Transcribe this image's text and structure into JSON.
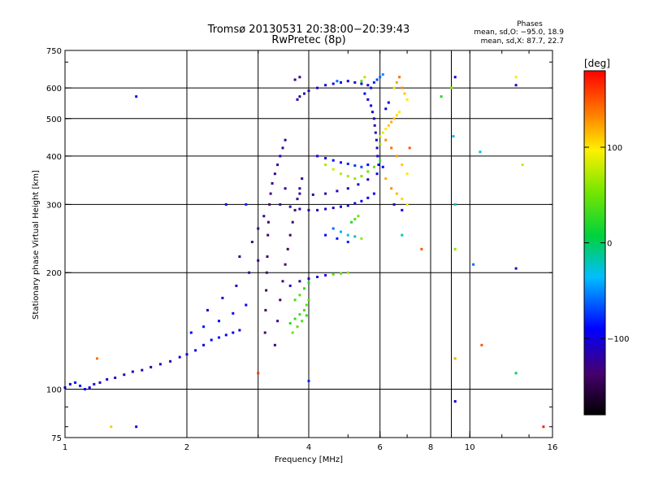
{
  "chart_data": {
    "type": "scatter",
    "title": "Tromsø 20130531 20:38:00−20:39:43",
    "subtitle": "RwPretec (8p)",
    "stats": {
      "heading": "Phases",
      "line_o": "mean, sd,O:  −95.0, 18.9",
      "line_x": "mean, sd,X:  87.7, 22.7"
    },
    "xlabel": "Frequency [MHz]",
    "ylabel": "Stationary phase Virtual Height [km]",
    "x_scale": "log",
    "y_scale": "log",
    "xlim": [
      1,
      16
    ],
    "ylim": [
      75,
      750
    ],
    "x_ticks": [
      {
        "v": 1,
        "label": "1"
      },
      {
        "v": 2,
        "label": "2"
      },
      {
        "v": 4,
        "label": "4"
      },
      {
        "v": 6,
        "label": "6"
      },
      {
        "v": 8,
        "label": "8"
      },
      {
        "v": 10,
        "label": "10"
      },
      {
        "v": 16,
        "label": "16"
      }
    ],
    "x_grid": [
      2,
      3,
      4,
      6,
      8,
      9,
      10
    ],
    "y_ticks": [
      {
        "v": 75,
        "label": "75"
      },
      {
        "v": 100,
        "label": "100"
      },
      {
        "v": 200,
        "label": "200"
      },
      {
        "v": 300,
        "label": "300"
      },
      {
        "v": 400,
        "label": "400"
      },
      {
        "v": 500,
        "label": "500"
      },
      {
        "v": 600,
        "label": "600"
      },
      {
        "v": 750,
        "label": "750"
      }
    ],
    "y_grid": [
      100,
      200,
      300,
      400,
      500,
      600
    ],
    "grid": true,
    "colorbar": {
      "label": "[deg]",
      "range": [
        -180,
        180
      ],
      "ticks": [
        {
          "v": 100,
          "label": "100"
        },
        {
          "v": 0,
          "label": "0"
        },
        {
          "v": -100,
          "label": "−100"
        }
      ]
    },
    "points": [
      [
        1.0,
        101,
        -100
      ],
      [
        1.03,
        103,
        -95
      ],
      [
        1.06,
        104,
        -90
      ],
      [
        1.09,
        102,
        -85
      ],
      [
        1.12,
        100,
        -92
      ],
      [
        1.15,
        101,
        -100
      ],
      [
        1.18,
        103,
        -105
      ],
      [
        1.22,
        104,
        -110
      ],
      [
        1.27,
        106,
        -108
      ],
      [
        1.33,
        107,
        -112
      ],
      [
        1.4,
        109,
        -115
      ],
      [
        1.47,
        111,
        -110
      ],
      [
        1.55,
        112,
        -115
      ],
      [
        1.63,
        114,
        -118
      ],
      [
        1.72,
        116,
        -112
      ],
      [
        1.82,
        118,
        -110
      ],
      [
        1.92,
        121,
        -108
      ],
      [
        2.0,
        123,
        -100
      ],
      [
        2.1,
        126,
        -100
      ],
      [
        2.2,
        130,
        -95
      ],
      [
        2.3,
        134,
        -90
      ],
      [
        2.4,
        136,
        -85
      ],
      [
        2.5,
        138,
        -90
      ],
      [
        2.6,
        140,
        -95
      ],
      [
        2.7,
        142,
        -100
      ],
      [
        2.05,
        140,
        -90
      ],
      [
        2.2,
        145,
        -85
      ],
      [
        2.4,
        150,
        -92
      ],
      [
        2.6,
        157,
        -90
      ],
      [
        2.8,
        165,
        -95
      ],
      [
        2.25,
        160,
        -100
      ],
      [
        2.45,
        172,
        -110
      ],
      [
        2.65,
        185,
        -115
      ],
      [
        2.85,
        200,
        -120
      ],
      [
        3.0,
        215,
        -125
      ],
      [
        2.7,
        220,
        -120
      ],
      [
        2.9,
        240,
        -125
      ],
      [
        3.0,
        260,
        -130
      ],
      [
        3.1,
        280,
        -132
      ],
      [
        3.12,
        140,
        -135
      ],
      [
        3.13,
        160,
        -138
      ],
      [
        3.14,
        180,
        -140
      ],
      [
        3.15,
        200,
        -135
      ],
      [
        3.16,
        220,
        -140
      ],
      [
        3.17,
        250,
        -138
      ],
      [
        3.18,
        270,
        -140
      ],
      [
        3.2,
        300,
        -135
      ],
      [
        3.22,
        320,
        -132
      ],
      [
        3.25,
        340,
        -130
      ],
      [
        3.3,
        360,
        -128
      ],
      [
        3.35,
        380,
        -125
      ],
      [
        3.4,
        400,
        -120
      ],
      [
        3.45,
        420,
        -122
      ],
      [
        3.5,
        440,
        -120
      ],
      [
        3.3,
        130,
        -128
      ],
      [
        3.35,
        150,
        -130
      ],
      [
        3.4,
        170,
        -132
      ],
      [
        3.45,
        190,
        -134
      ],
      [
        3.5,
        210,
        -136
      ],
      [
        3.55,
        230,
        -138
      ],
      [
        3.6,
        250,
        -140
      ],
      [
        3.65,
        270,
        -138
      ],
      [
        3.7,
        290,
        -135
      ],
      [
        3.75,
        310,
        -130
      ],
      [
        3.8,
        330,
        -128
      ],
      [
        3.85,
        350,
        -125
      ],
      [
        3.6,
        148,
        25
      ],
      [
        3.7,
        152,
        30
      ],
      [
        3.8,
        156,
        35
      ],
      [
        3.9,
        160,
        40
      ],
      [
        3.95,
        165,
        45
      ],
      [
        4.0,
        170,
        40
      ],
      [
        3.65,
        140,
        50
      ],
      [
        3.75,
        145,
        45
      ],
      [
        3.85,
        150,
        38
      ],
      [
        3.95,
        155,
        30
      ],
      [
        3.7,
        170,
        35
      ],
      [
        3.8,
        175,
        42
      ],
      [
        3.9,
        182,
        28
      ],
      [
        4.0,
        188,
        22
      ],
      [
        3.6,
        185,
        -110
      ],
      [
        3.8,
        190,
        -115
      ],
      [
        4.0,
        193,
        -112
      ],
      [
        4.2,
        195,
        -108
      ],
      [
        4.4,
        197,
        -100
      ],
      [
        4.6,
        198,
        40
      ],
      [
        4.8,
        199,
        45
      ],
      [
        5.0,
        200,
        60
      ],
      [
        3.4,
        300,
        -120
      ],
      [
        3.6,
        296,
        -118
      ],
      [
        3.8,
        292,
        -115
      ],
      [
        4.0,
        290,
        -112
      ],
      [
        4.2,
        290,
        -110
      ],
      [
        4.4,
        292,
        -108
      ],
      [
        4.6,
        294,
        -105
      ],
      [
        4.8,
        296,
        -102
      ],
      [
        5.0,
        298,
        -100
      ],
      [
        5.2,
        302,
        -98
      ],
      [
        5.4,
        306,
        -95
      ],
      [
        5.6,
        312,
        -92
      ],
      [
        5.8,
        320,
        -90
      ],
      [
        3.5,
        330,
        -125
      ],
      [
        3.8,
        320,
        -122
      ],
      [
        4.1,
        318,
        -120
      ],
      [
        4.4,
        320,
        -118
      ],
      [
        4.7,
        325,
        -115
      ],
      [
        5.0,
        330,
        -112
      ],
      [
        5.3,
        338,
        -108
      ],
      [
        5.6,
        348,
        -105
      ],
      [
        5.9,
        360,
        -100
      ],
      [
        6.1,
        375,
        -95
      ],
      [
        4.2,
        400,
        -100
      ],
      [
        4.4,
        395,
        -95
      ],
      [
        4.6,
        390,
        -90
      ],
      [
        4.8,
        385,
        -85
      ],
      [
        5.0,
        382,
        -80
      ],
      [
        5.2,
        378,
        -75
      ],
      [
        5.4,
        375,
        -70
      ],
      [
        5.6,
        380,
        -90
      ],
      [
        4.4,
        380,
        70
      ],
      [
        4.6,
        370,
        80
      ],
      [
        4.8,
        360,
        75
      ],
      [
        5.0,
        355,
        68
      ],
      [
        5.2,
        350,
        62
      ],
      [
        5.4,
        355,
        55
      ],
      [
        5.6,
        365,
        50
      ],
      [
        5.8,
        375,
        45
      ],
      [
        6.0,
        390,
        30
      ],
      [
        4.6,
        260,
        -60
      ],
      [
        4.8,
        255,
        -40
      ],
      [
        5.0,
        250,
        -30
      ],
      [
        5.2,
        248,
        -20
      ],
      [
        5.4,
        245,
        60
      ],
      [
        4.4,
        250,
        -90
      ],
      [
        4.7,
        245,
        -85
      ],
      [
        5.0,
        240,
        -80
      ],
      [
        5.1,
        270,
        20
      ],
      [
        5.2,
        275,
        40
      ],
      [
        5.3,
        280,
        50
      ],
      [
        3.8,
        570,
        -125
      ],
      [
        3.9,
        580,
        -120
      ],
      [
        4.0,
        590,
        -115
      ],
      [
        4.2,
        600,
        -110
      ],
      [
        4.4,
        610,
        -105
      ],
      [
        4.6,
        615,
        -100
      ],
      [
        4.8,
        620,
        -95
      ],
      [
        5.0,
        625,
        -100
      ],
      [
        5.2,
        620,
        -110
      ],
      [
        5.4,
        615,
        -105
      ],
      [
        5.6,
        610,
        -110
      ],
      [
        3.7,
        630,
        -130
      ],
      [
        3.8,
        640,
        -125
      ],
      [
        3.75,
        560,
        -115
      ],
      [
        5.5,
        580,
        -90
      ],
      [
        5.6,
        560,
        -95
      ],
      [
        5.7,
        540,
        -100
      ],
      [
        5.75,
        520,
        -105
      ],
      [
        5.8,
        500,
        -110
      ],
      [
        5.82,
        480,
        -112
      ],
      [
        5.85,
        460,
        -115
      ],
      [
        5.88,
        440,
        -112
      ],
      [
        5.9,
        420,
        -110
      ],
      [
        5.92,
        400,
        -100
      ],
      [
        5.95,
        380,
        -95
      ],
      [
        5.7,
        600,
        -85
      ],
      [
        5.8,
        620,
        -80
      ],
      [
        5.9,
        630,
        -70
      ],
      [
        6.0,
        640,
        -60
      ],
      [
        6.1,
        650,
        -50
      ],
      [
        6.0,
        450,
        80
      ],
      [
        6.1,
        460,
        90
      ],
      [
        6.2,
        470,
        100
      ],
      [
        6.3,
        480,
        110
      ],
      [
        6.4,
        490,
        120
      ],
      [
        6.5,
        500,
        115
      ],
      [
        6.6,
        510,
        105
      ],
      [
        6.7,
        520,
        95
      ],
      [
        6.0,
        430,
        60
      ],
      [
        6.2,
        440,
        130
      ],
      [
        6.4,
        420,
        140
      ],
      [
        6.6,
        400,
        125
      ],
      [
        6.8,
        380,
        110
      ],
      [
        7.0,
        360,
        100
      ],
      [
        6.2,
        350,
        120
      ],
      [
        6.4,
        330,
        130
      ],
      [
        6.6,
        320,
        115
      ],
      [
        6.8,
        310,
        105
      ],
      [
        7.0,
        300,
        95
      ],
      [
        6.5,
        600,
        85
      ],
      [
        6.6,
        620,
        120
      ],
      [
        6.7,
        640,
        140
      ],
      [
        6.8,
        600,
        130
      ],
      [
        6.9,
        580,
        110
      ],
      [
        7.0,
        560,
        100
      ],
      [
        6.5,
        300,
        -110
      ],
      [
        6.8,
        290,
        -100
      ],
      [
        7.1,
        420,
        150
      ],
      [
        6.3,
        550,
        -90
      ],
      [
        6.2,
        530,
        -95
      ],
      [
        1.2,
        120,
        140
      ],
      [
        1.3,
        80,
        110
      ],
      [
        1.5,
        80,
        -100
      ],
      [
        1.5,
        570,
        -100
      ],
      [
        2.5,
        300,
        -90
      ],
      [
        2.8,
        300,
        -80
      ],
      [
        3.0,
        110,
        160
      ],
      [
        4.0,
        105,
        -80
      ],
      [
        4.7,
        625,
        -60
      ],
      [
        5.4,
        625,
        40
      ],
      [
        5.5,
        640,
        70
      ],
      [
        6.8,
        250,
        -20
      ],
      [
        7.6,
        230,
        150
      ],
      [
        8.5,
        570,
        20
      ],
      [
        9.0,
        600,
        60
      ],
      [
        9.2,
        640,
        -100
      ],
      [
        9.1,
        450,
        -40
      ],
      [
        9.2,
        300,
        -20
      ],
      [
        9.2,
        230,
        60
      ],
      [
        9.2,
        120,
        120
      ],
      [
        9.2,
        93,
        -100
      ],
      [
        10.2,
        210,
        -60
      ],
      [
        10.6,
        410,
        -30
      ],
      [
        10.7,
        130,
        150
      ],
      [
        13.0,
        640,
        100
      ],
      [
        13.0,
        610,
        -110
      ],
      [
        13.0,
        205,
        -110
      ],
      [
        13.0,
        110,
        0
      ],
      [
        13.5,
        380,
        80
      ],
      [
        15.2,
        80,
        170
      ]
    ]
  }
}
